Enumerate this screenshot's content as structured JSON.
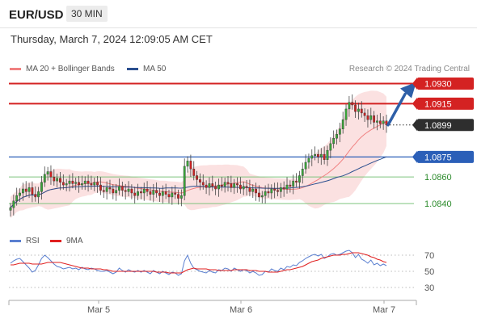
{
  "header": {
    "pair": "EUR/USD",
    "timeframe": "30 MIN",
    "datetime": "Thursday, March 7, 2024 12:09:05 AM CET"
  },
  "legend_top": [
    {
      "label": "MA 20 + Bollinger Bands",
      "color": "#f08080"
    },
    {
      "label": "MA 50",
      "color": "#2b4f8f"
    }
  ],
  "credit": "Research © 2024 Trading Central",
  "legend_bottom": [
    {
      "label": "RSI",
      "color": "#5a7fd0"
    },
    {
      "label": "9MA",
      "color": "#e02020"
    }
  ],
  "chart_data": [
    {
      "type": "candlestick",
      "title": "EUR/USD",
      "x_ticks": [
        "Mar 5",
        "Mar 6",
        "Mar 7"
      ],
      "ylim": [
        1.0828,
        1.0937
      ],
      "levels": [
        {
          "value": 1.093,
          "label": "1.0930",
          "role": "resistance"
        },
        {
          "value": 1.0915,
          "label": "1.0915",
          "role": "resistance"
        },
        {
          "value": 1.0899,
          "label": "1.0899",
          "role": "last-price"
        },
        {
          "value": 1.0875,
          "label": "1.0875",
          "role": "pivot"
        },
        {
          "value": 1.086,
          "label": "1.0860",
          "role": "support"
        },
        {
          "value": 1.084,
          "label": "1.0840",
          "role": "support"
        }
      ],
      "series": [
        {
          "name": "MA 20 + Bollinger Bands",
          "color": "#f08080"
        },
        {
          "name": "MA 50",
          "color": "#2b4f8f"
        }
      ],
      "close": [
        1.0837,
        1.0842,
        1.0846,
        1.0848,
        1.0851,
        1.0849,
        1.0852,
        1.0847,
        1.0845,
        1.0849,
        1.0856,
        1.0862,
        1.0864,
        1.086,
        1.0857,
        1.0859,
        1.0856,
        1.0854,
        1.0855,
        1.0857,
        1.0855,
        1.0856,
        1.0854,
        1.0855,
        1.0857,
        1.0855,
        1.0854,
        1.0856,
        1.0854,
        1.085,
        1.0849,
        1.0852,
        1.0851,
        1.0848,
        1.085,
        1.0853,
        1.085,
        1.0849,
        1.0851,
        1.0848,
        1.0846,
        1.0849,
        1.0848,
        1.0851,
        1.0849,
        1.0847,
        1.085,
        1.0848,
        1.0846,
        1.0849,
        1.0847,
        1.0845,
        1.0848,
        1.0847,
        1.0844,
        1.0846,
        1.0868,
        1.0872,
        1.0866,
        1.0861,
        1.0858,
        1.0856,
        1.0854,
        1.0852,
        1.0855,
        1.0853,
        1.0851,
        1.0854,
        1.0853,
        1.0856,
        1.0855,
        1.0852,
        1.0855,
        1.0854,
        1.0851,
        1.0853,
        1.0852,
        1.0849,
        1.0851,
        1.0848,
        1.0845,
        1.0846,
        1.0849,
        1.0848,
        1.0851,
        1.085,
        1.0849,
        1.0852,
        1.0851,
        1.0854,
        1.0853,
        1.0857,
        1.0856,
        1.0861,
        1.0866,
        1.0871,
        1.0874,
        1.0876,
        1.0877,
        1.0875,
        1.0877,
        1.0873,
        1.088,
        1.0885,
        1.0889,
        1.0892,
        1.0896,
        1.0903,
        1.0911,
        1.0916,
        1.0914,
        1.0909,
        1.0911,
        1.0908,
        1.0906,
        1.0903,
        1.0906,
        1.0901,
        1.0902,
        1.09,
        1.0902,
        1.0899
      ]
    },
    {
      "type": "line",
      "title": "RSI",
      "y_ticks": [
        70,
        50,
        30
      ],
      "ylim": [
        20,
        80
      ],
      "series": [
        {
          "name": "RSI",
          "color": "#5a7fd0",
          "values": [
            60,
            63,
            65,
            66,
            62,
            58,
            54,
            49,
            51,
            58,
            66,
            70,
            67,
            63,
            59,
            56,
            55,
            53,
            54,
            55,
            53,
            54,
            52,
            55,
            53,
            52,
            54,
            53,
            51,
            50,
            50,
            51,
            49,
            47,
            49,
            54,
            51,
            49,
            52,
            50,
            49,
            51,
            49,
            51,
            49,
            47,
            51,
            49,
            47,
            50,
            48,
            46,
            49,
            48,
            45,
            47,
            63,
            70,
            60,
            54,
            52,
            50,
            49,
            48,
            51,
            49,
            48,
            52,
            51,
            54,
            53,
            50,
            54,
            52,
            50,
            52,
            51,
            48,
            50,
            48,
            45,
            46,
            50,
            49,
            53,
            51,
            50,
            54,
            52,
            56,
            55,
            58,
            57,
            61,
            63,
            66,
            68,
            70,
            71,
            69,
            71,
            66,
            68,
            71,
            72,
            70,
            71,
            73,
            75,
            76,
            73,
            67,
            71,
            65,
            63,
            60,
            64,
            58,
            60,
            57,
            59,
            57
          ]
        },
        {
          "name": "9MA",
          "color": "#e02020",
          "values": [
            58,
            58,
            59,
            60,
            60,
            60,
            60,
            59,
            59,
            59,
            59,
            60,
            61,
            61,
            61,
            61,
            61,
            60,
            59,
            58,
            57,
            56,
            55,
            54,
            54,
            54,
            53,
            53,
            53,
            53,
            52,
            52,
            51,
            50,
            50,
            50,
            50,
            50,
            50,
            50,
            50,
            50,
            50,
            50,
            50,
            50,
            50,
            49,
            49,
            49,
            49,
            48,
            48,
            48,
            48,
            48,
            50,
            52,
            53,
            54,
            53,
            53,
            53,
            53,
            52,
            52,
            52,
            51,
            51,
            51,
            51,
            51,
            52,
            52,
            52,
            52,
            52,
            51,
            51,
            51,
            50,
            50,
            50,
            49,
            49,
            49,
            49,
            50,
            51,
            52,
            52,
            53,
            54,
            55,
            56,
            58,
            60,
            62,
            63,
            64,
            66,
            67,
            68,
            69,
            70,
            70,
            70,
            71,
            71,
            72,
            73,
            73,
            73,
            72,
            71,
            70,
            68,
            67,
            65,
            64,
            62,
            61
          ]
        }
      ]
    }
  ]
}
